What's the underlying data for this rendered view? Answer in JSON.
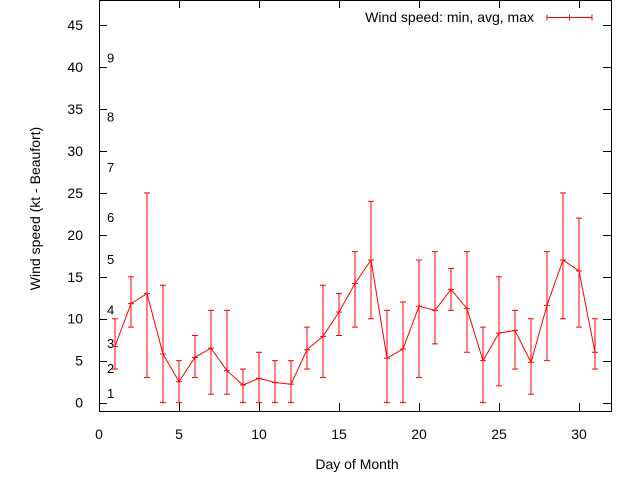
{
  "chart_data": {
    "type": "line",
    "legend_label": "Wind speed: min, avg, max",
    "legend_position": "top-right",
    "xlabel": "Day of Month",
    "ylabel": "Wind speed (kt - Beaufort)",
    "xlim": [
      0,
      32
    ],
    "ylim": [
      -1,
      48
    ],
    "x_ticks": [
      0,
      5,
      10,
      15,
      20,
      25,
      30
    ],
    "y_ticks": [
      0,
      5,
      10,
      15,
      20,
      25,
      30,
      35,
      40,
      45
    ],
    "grid": false,
    "series_color": "#ff0000",
    "beaufort_labels": [
      {
        "label": "1",
        "y": 1
      },
      {
        "label": "2",
        "y": 4
      },
      {
        "label": "3",
        "y": 7
      },
      {
        "label": "4",
        "y": 11
      },
      {
        "label": "5",
        "y": 17
      },
      {
        "label": "6",
        "y": 22
      },
      {
        "label": "7",
        "y": 28
      },
      {
        "label": "8",
        "y": 34
      },
      {
        "label": "9",
        "y": 41
      }
    ],
    "series": [
      {
        "x": [
          1,
          2,
          3,
          4,
          5,
          6,
          7,
          8,
          9,
          10,
          11,
          12,
          13,
          14,
          15,
          16,
          17,
          18,
          19,
          20,
          21,
          22,
          23,
          24,
          25,
          26,
          27,
          28,
          29,
          30,
          31
        ],
        "avg": [
          6.7,
          11.8,
          13.0,
          5.8,
          2.5,
          5.4,
          6.5,
          3.8,
          2.1,
          2.9,
          2.4,
          2.2,
          6.3,
          7.9,
          10.8,
          14.2,
          17.0,
          5.3,
          6.4,
          11.5,
          11.0,
          13.5,
          11.2,
          5.0,
          8.3,
          8.6,
          4.8,
          11.6,
          17.0,
          15.7,
          6.0
        ],
        "min": [
          4,
          9,
          3,
          0,
          0,
          3,
          1,
          1,
          0,
          0,
          0,
          0,
          4,
          3,
          8,
          9,
          10,
          0,
          0,
          3,
          7,
          11,
          6,
          0,
          2,
          4,
          1,
          5,
          10,
          9,
          4
        ],
        "max": [
          10,
          15,
          25,
          14,
          5,
          8,
          11,
          11,
          4,
          6,
          5,
          5,
          9,
          14,
          13,
          18,
          24,
          11,
          12,
          17,
          18,
          16,
          18,
          9,
          15,
          11,
          10,
          18,
          25,
          22,
          10
        ]
      }
    ]
  }
}
